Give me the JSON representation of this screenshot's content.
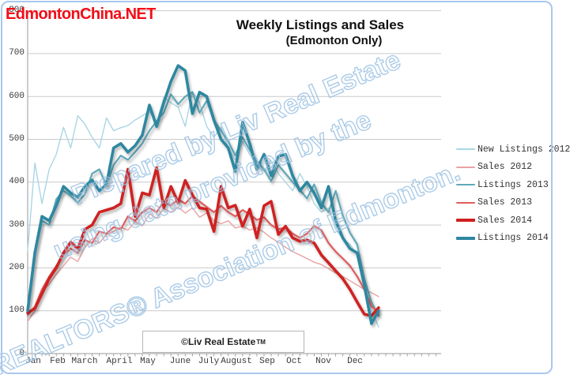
{
  "logo": {
    "text": "EdmontonChina.NET",
    "color": "#f20d17"
  },
  "chart": {
    "title": "Weekly Listings and Sales",
    "subtitle": "(Edmonton Only)"
  },
  "footer": {
    "text": "©Liv Real Estate",
    "tm": "TM"
  },
  "watermark": {
    "full_text": "Prepared by Liv Real Estate using data provided by the REALTORS® Association of Edmonton.",
    "lines": [
      "Prepared by Liv Real Estate",
      "using data provided by the",
      "REALTORS® Association of Edmonton."
    ],
    "color": "#9ec6e4"
  },
  "chart_data": {
    "type": "line",
    "title": "Weekly Listings and Sales (Edmonton Only)",
    "x_unit": "week",
    "weeks": 50,
    "months": [
      "Jan",
      "Feb",
      "March",
      "April",
      "May",
      "June",
      "July",
      "August",
      "Sep",
      "Oct",
      "Nov",
      "Dec"
    ],
    "ylim": [
      0,
      800
    ],
    "ystep": 100,
    "grid": true,
    "legend_position": "right",
    "axis_color": "#9a9a9a",
    "grid_color": "#c9c9c9",
    "series": [
      {
        "name": "New Listings 2012",
        "color": "#a9d6e5",
        "width": 1.4,
        "values": [
          240,
          445,
          350,
          430,
          465,
          528,
          480,
          555,
          535,
          505,
          480,
          550,
          520,
          527,
          532,
          545,
          555,
          565,
          540,
          598,
          585,
          575,
          530,
          612,
          585,
          530,
          505,
          528,
          480,
          452,
          495,
          465,
          440,
          425,
          450,
          420,
          400,
          380,
          420,
          390,
          350,
          330,
          340,
          290,
          268,
          255,
          230,
          160,
          100,
          62
        ]
      },
      {
        "name": "Sales 2012",
        "color": "#e9a2a2",
        "width": 1.4,
        "values": [
          75,
          100,
          145,
          162,
          185,
          205,
          225,
          215,
          248,
          268,
          258,
          278,
          285,
          295,
          288,
          308,
          298,
          326,
          316,
          338,
          330,
          342,
          328,
          340,
          318,
          328,
          310,
          303,
          310,
          293,
          298,
          288,
          294,
          283,
          270,
          260,
          248,
          238,
          230,
          222,
          213,
          208,
          198,
          188,
          180,
          170,
          160,
          150,
          142,
          133
        ]
      },
      {
        "name": "Listings 2013",
        "color": "#5fa8ba",
        "width": 2.2,
        "values": [
          105,
          230,
          310,
          300,
          360,
          380,
          368,
          352,
          372,
          420,
          430,
          392,
          440,
          462,
          452,
          470,
          490,
          520,
          542,
          562,
          605,
          582,
          600,
          610,
          562,
          590,
          545,
          520,
          495,
          462,
          505,
          475,
          448,
          430,
          402,
          440,
          420,
          400,
          382,
          362,
          395,
          352,
          330,
          380,
          322,
          282,
          255,
          175,
          120,
          88
        ]
      },
      {
        "name": "Sales 2013",
        "color": "#e05c5c",
        "width": 2.2,
        "values": [
          90,
          110,
          150,
          180,
          205,
          230,
          245,
          235,
          265,
          258,
          285,
          280,
          295,
          290,
          320,
          310,
          330,
          340,
          330,
          355,
          345,
          360,
          350,
          368,
          355,
          342,
          330,
          345,
          330,
          320,
          335,
          325,
          312,
          318,
          300,
          290,
          295,
          280,
          270,
          280,
          298,
          288,
          258,
          238,
          222,
          205,
          180,
          150,
          110,
          95
        ]
      },
      {
        "name": "Sales 2014",
        "color": "#cf2020",
        "width": 3.6,
        "values": [
          95,
          105,
          140,
          175,
          200,
          235,
          260,
          245,
          290,
          300,
          330,
          335,
          340,
          350,
          430,
          320,
          375,
          370,
          434,
          340,
          390,
          352,
          404,
          370,
          340,
          337,
          285,
          390,
          340,
          346,
          297,
          337,
          270,
          345,
          355,
          278,
          297,
          270,
          262,
          265,
          258,
          230,
          212,
          193,
          175,
          150,
          120,
          92,
          88,
          107
        ]
      },
      {
        "name": "Listings 2014",
        "color": "#2e87a0",
        "width": 3.6,
        "values": [
          100,
          235,
          320,
          310,
          345,
          390,
          375,
          365,
          390,
          405,
          380,
          395,
          480,
          490,
          470,
          485,
          510,
          580,
          530,
          585,
          635,
          672,
          660,
          560,
          610,
          600,
          545,
          500,
          480,
          425,
          540,
          490,
          430,
          465,
          415,
          460,
          465,
          415,
          380,
          400,
          375,
          340,
          390,
          310,
          270,
          245,
          235,
          160,
          70,
          100
        ]
      }
    ]
  }
}
